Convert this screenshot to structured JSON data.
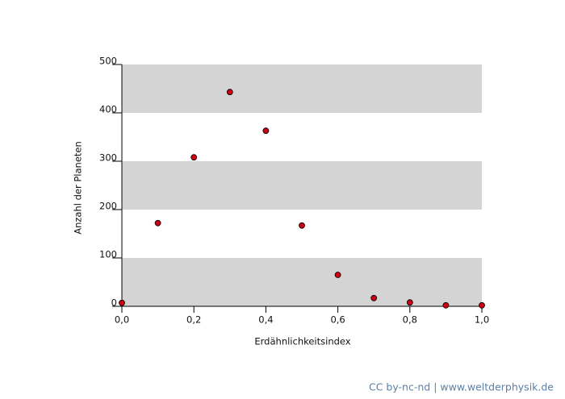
{
  "chart_data": {
    "type": "scatter",
    "x_label": "Erdähnlichkeitsindex",
    "y_label": "Anzahl der Planeten",
    "x": [
      0,
      0.1,
      0.2,
      0.3,
      0.4,
      0.5,
      0.6,
      0.7,
      0.8,
      0.9,
      1.0
    ],
    "values": [
      7,
      172,
      308,
      443,
      363,
      167,
      65,
      17,
      8,
      2,
      2
    ],
    "color": "#cc0011",
    "band_color": "#d4d4d4",
    "xlim": [
      0,
      1.0
    ],
    "ylim": [
      0,
      500
    ],
    "xticks": [
      {
        "value": 0,
        "label": "0,0"
      },
      {
        "value": 0.2,
        "label": "0,2"
      },
      {
        "value": 0.4,
        "label": "0,4"
      },
      {
        "value": 0.6,
        "label": "0,6"
      },
      {
        "value": 0.8,
        "label": "0,8"
      },
      {
        "value": 1.0,
        "label": "1,0"
      }
    ],
    "yticks": [
      0,
      100,
      200,
      300,
      400,
      500
    ],
    "credit": "CC by-nc-nd | www.weltderphysik.de"
  }
}
